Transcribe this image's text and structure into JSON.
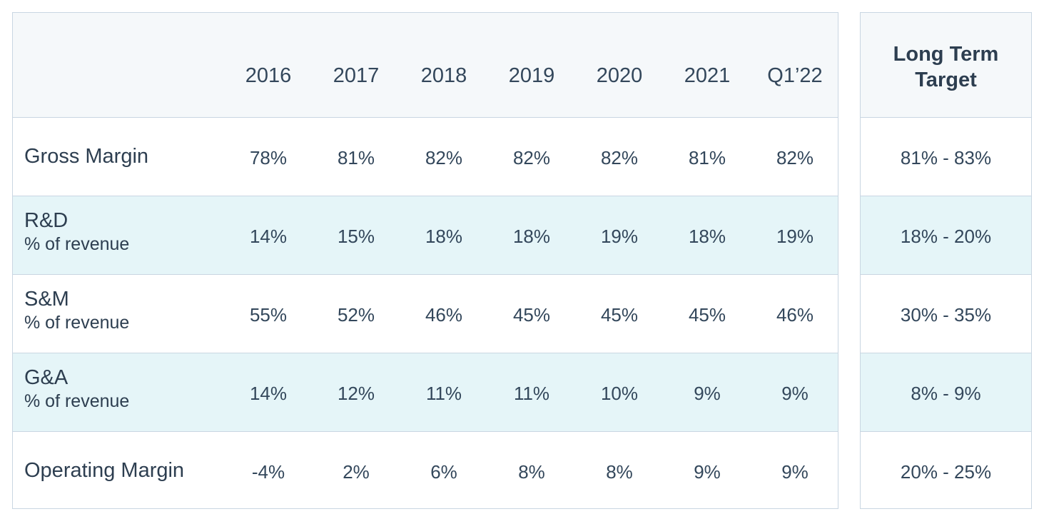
{
  "chart_data": {
    "type": "table",
    "columns": [
      "2016",
      "2017",
      "2018",
      "2019",
      "2020",
      "2021",
      "Q1’22"
    ],
    "target_header": "Long Term Target",
    "target_header_lines": [
      "Long Term",
      "Target"
    ],
    "rows": [
      {
        "label": "Gross Margin",
        "sublabel": "",
        "values": [
          "78%",
          "81%",
          "82%",
          "82%",
          "82%",
          "81%",
          "82%"
        ],
        "target": "81% - 83%"
      },
      {
        "label": "R&D",
        "sublabel": "% of revenue",
        "values": [
          "14%",
          "15%",
          "18%",
          "18%",
          "19%",
          "18%",
          "19%"
        ],
        "target": "18% - 20%"
      },
      {
        "label": "S&M",
        "sublabel": "% of revenue",
        "values": [
          "55%",
          "52%",
          "46%",
          "45%",
          "45%",
          "45%",
          "46%"
        ],
        "target": "30% - 35%"
      },
      {
        "label": "G&A",
        "sublabel": "% of revenue",
        "values": [
          "14%",
          "12%",
          "11%",
          "11%",
          "10%",
          "9%",
          "9%"
        ],
        "target": "8% - 9%"
      },
      {
        "label": "Operating Margin",
        "sublabel": "",
        "values": [
          "-4%",
          "2%",
          "6%",
          "8%",
          "8%",
          "9%",
          "9%"
        ],
        "target": "20% - 25%"
      }
    ]
  },
  "colors": {
    "text": "#33475b",
    "label_text": "#2d3e50",
    "header_bg": "#f5f8fa",
    "shaded_row_bg": "#e5f5f8",
    "border": "#c9d6e2"
  }
}
